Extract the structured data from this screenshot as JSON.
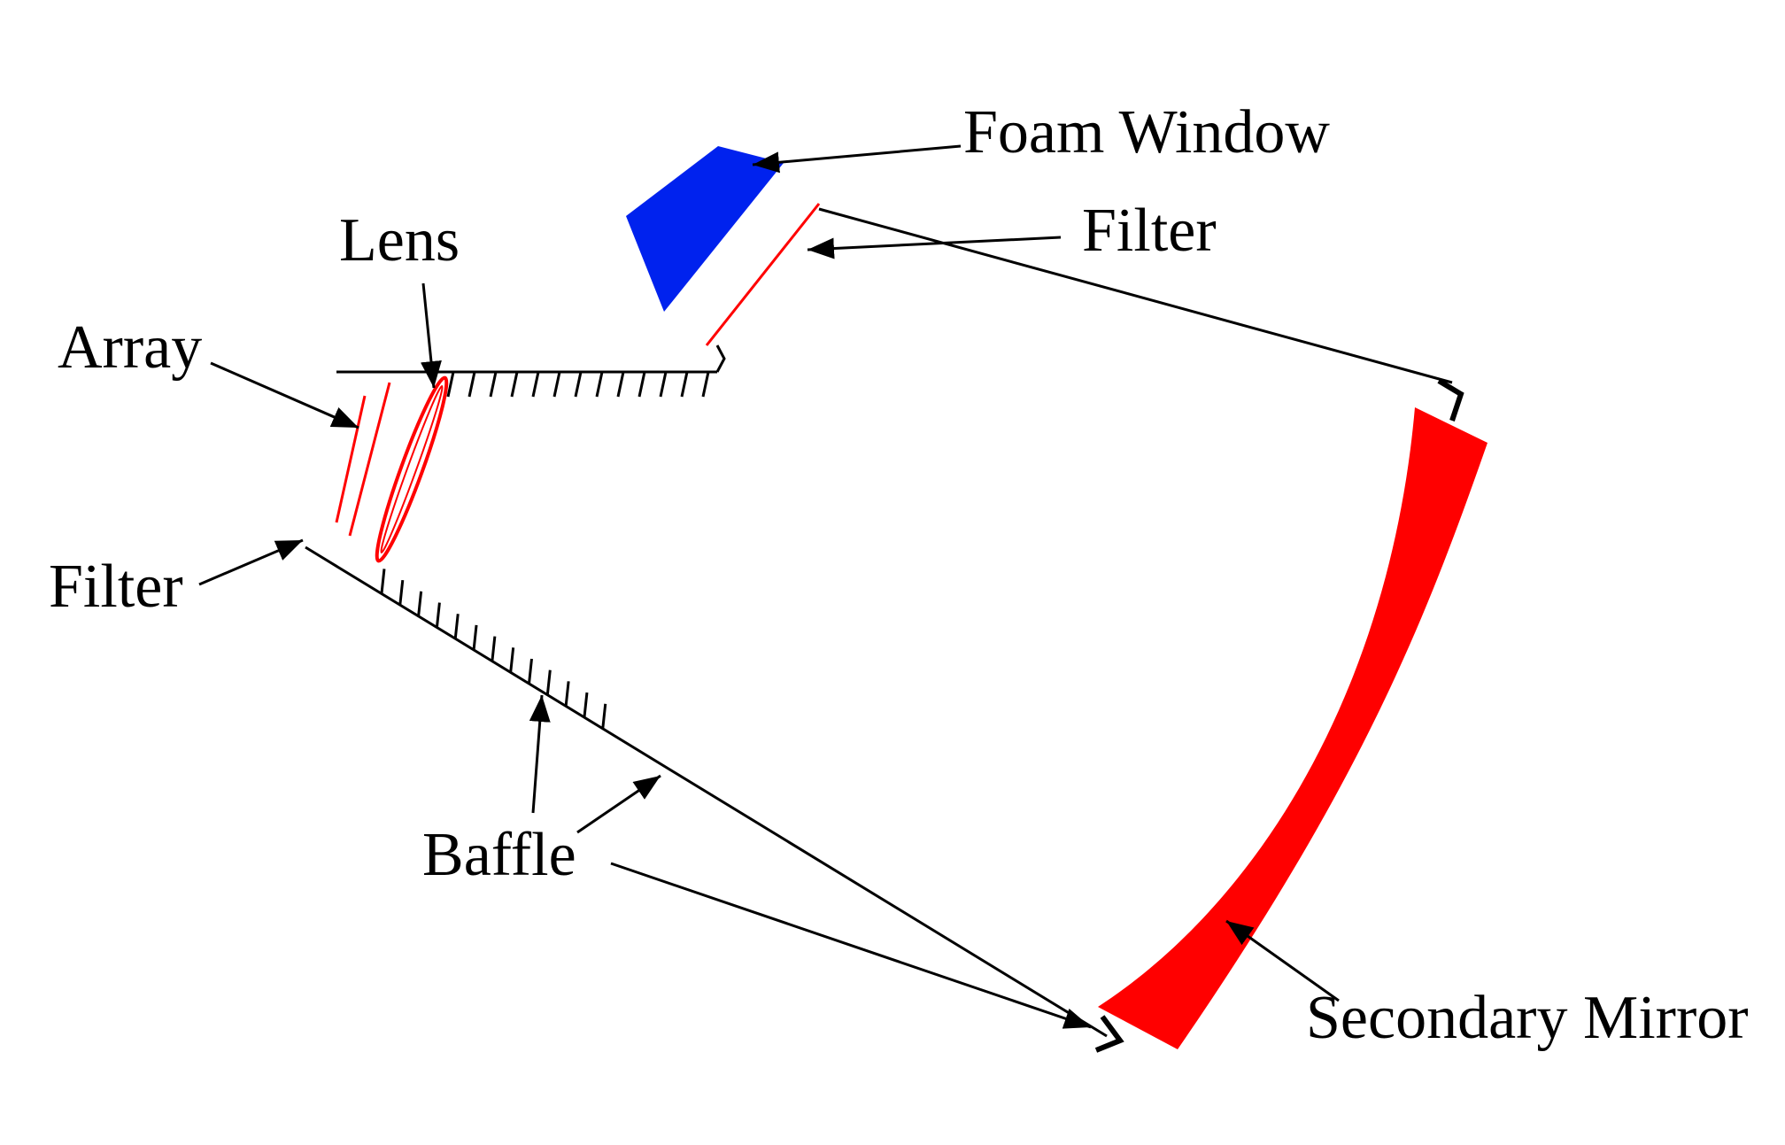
{
  "labels": {
    "foam_window": "Foam Window",
    "filter_top": "Filter",
    "lens": "Lens",
    "array": "Array",
    "filter_left": "Filter",
    "baffle": "Baffle",
    "secondary_mirror": "Secondary Mirror"
  },
  "colors": {
    "optic_red": "#ff0000",
    "foam_blue": "#0022ee",
    "line": "#000000",
    "background": "#ffffff"
  }
}
